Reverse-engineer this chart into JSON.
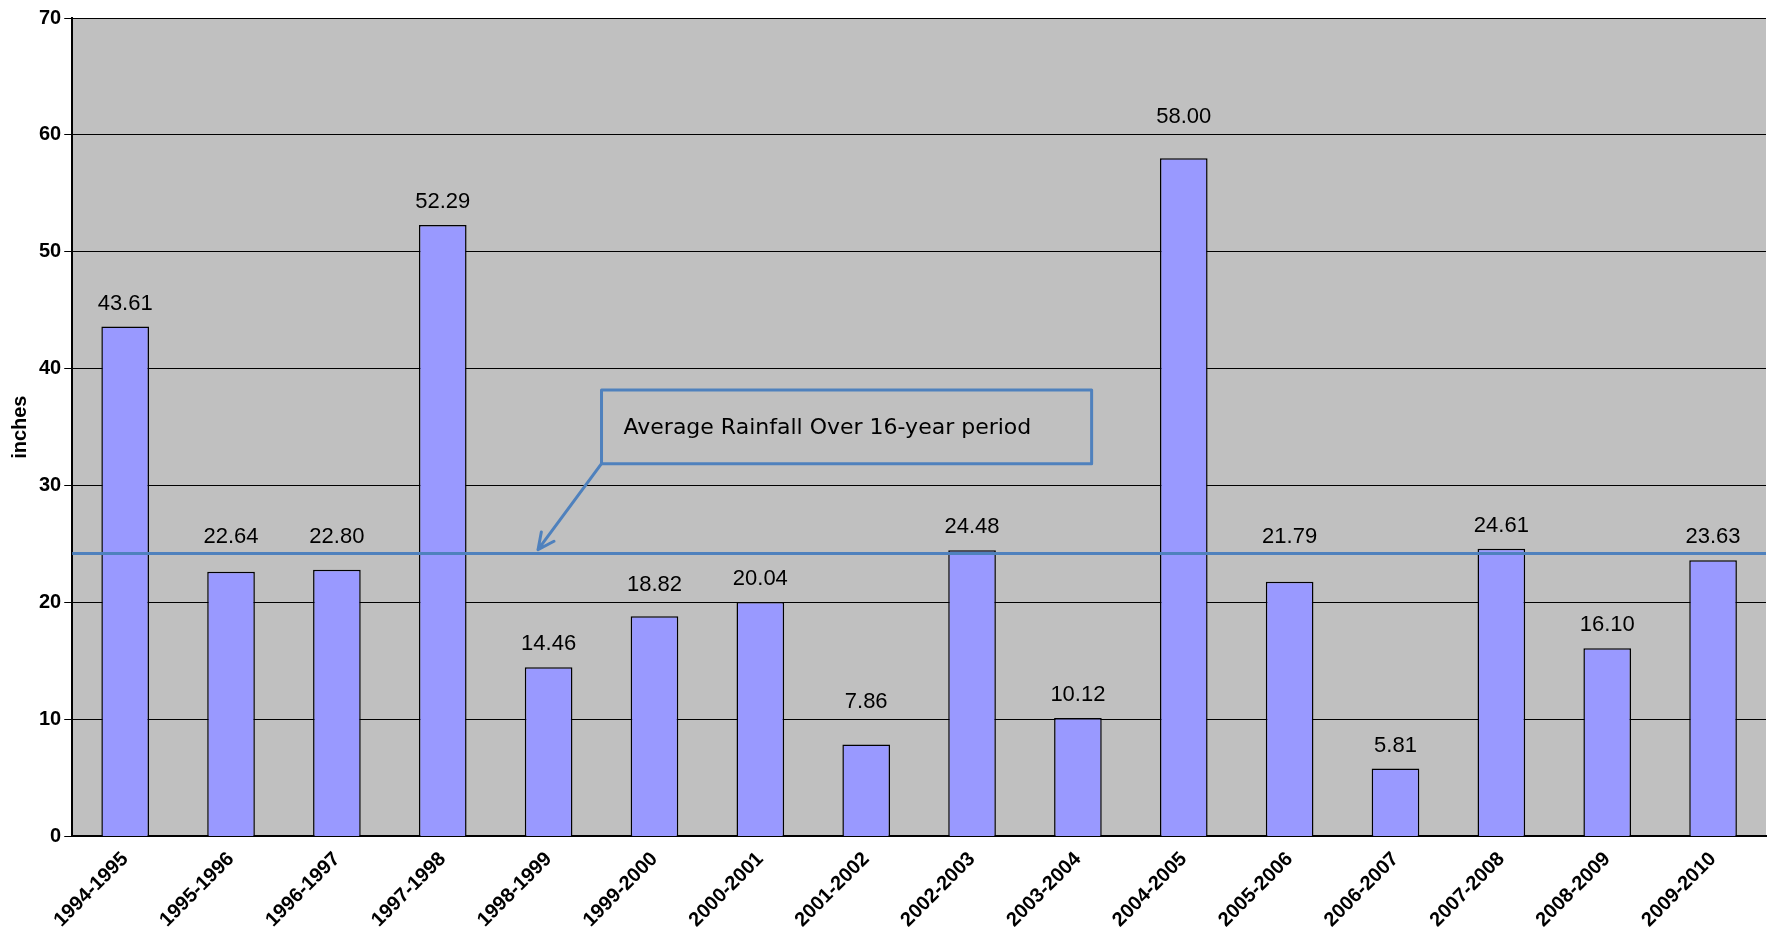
{
  "chart_data": {
    "type": "bar",
    "ylabel": "inches",
    "categories": [
      "1994-1995",
      "1995-1996",
      "1996-1997",
      "1997-1998",
      "1998-1999",
      "1999-2000",
      "2000-2001",
      "2001-2002",
      "2002-2003",
      "2003-2004",
      "2004-2005",
      "2005-2006",
      "2006-2007",
      "2007-2008",
      "2008-2009",
      "2009-2010"
    ],
    "values": [
      43.61,
      22.64,
      22.8,
      52.29,
      14.46,
      18.82,
      20.04,
      7.86,
      24.48,
      10.12,
      58.0,
      21.79,
      5.81,
      24.61,
      16.1,
      23.63
    ],
    "value_labels": [
      "43.61",
      "22.64",
      "22.80",
      "52.29",
      "14.46",
      "18.82",
      "20.04",
      "7.86",
      "24.48",
      "10.12",
      "58.00",
      "21.79",
      "5.81",
      "24.61",
      "16.10",
      "23.63"
    ],
    "color": "#9999ff",
    "ylim": [
      0,
      70
    ],
    "yticks": [
      0,
      10,
      20,
      30,
      40,
      50,
      60,
      70
    ],
    "grid": "y",
    "legend": false,
    "annotations": [
      "Average Rainfall Over 16-year period"
    ],
    "ref_lines": [
      {
        "axis": "y",
        "value": 24.2,
        "color": "#4f81bd"
      }
    ]
  }
}
